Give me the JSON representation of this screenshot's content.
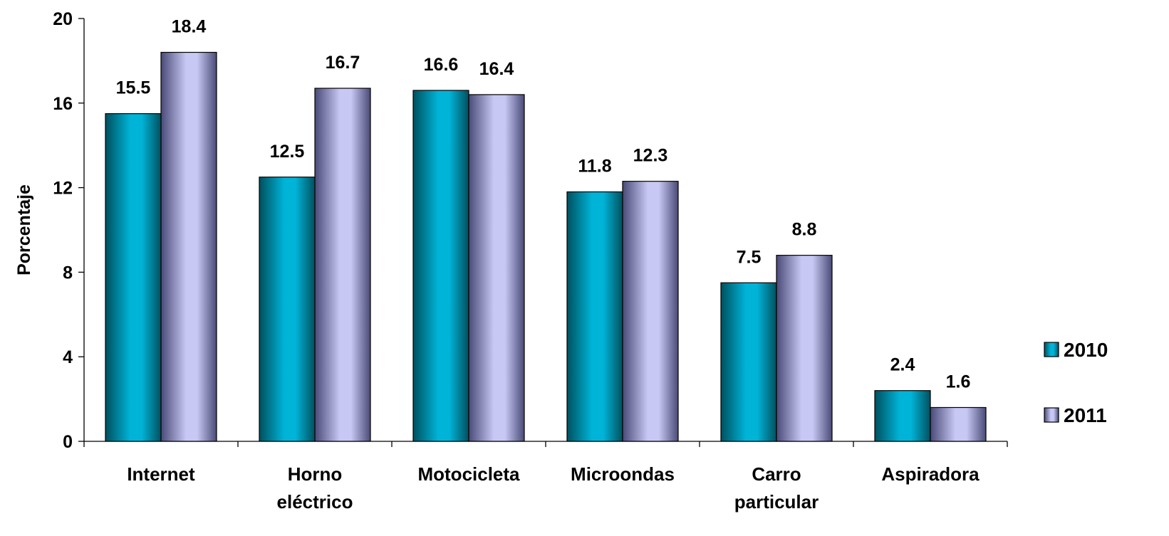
{
  "chart_data": {
    "type": "bar",
    "title": "",
    "xlabel": "",
    "ylabel": "Porcentaje",
    "ylim": [
      0,
      20
    ],
    "yticks": [
      0,
      4,
      8,
      12,
      16,
      20
    ],
    "categories": [
      [
        "Internet"
      ],
      [
        "Horno",
        "eléctrico"
      ],
      [
        "Motocicleta"
      ],
      [
        "Microondas"
      ],
      [
        "Carro",
        "particular"
      ],
      [
        "Aspiradora"
      ]
    ],
    "series": [
      {
        "name": "2010",
        "values": [
          15.5,
          12.5,
          16.6,
          11.8,
          7.5,
          2.4
        ],
        "color": "#00B4D8",
        "color_dark": "#00505E"
      },
      {
        "name": "2011",
        "values": [
          18.4,
          16.7,
          16.4,
          12.3,
          8.8,
          1.6
        ],
        "color": "#C8C8F4",
        "color_dark": "#4A4A78"
      }
    ],
    "grid": false,
    "legend_position": "right"
  }
}
